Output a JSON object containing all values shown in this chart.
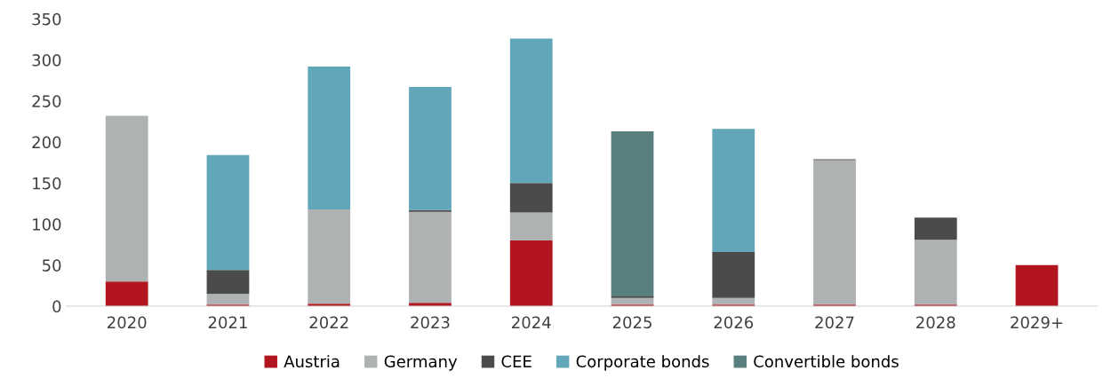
{
  "chart_data": {
    "type": "bar",
    "stacked": true,
    "categories": [
      "2020",
      "2021",
      "2022",
      "2023",
      "2024",
      "2025",
      "2026",
      "2027",
      "2028",
      "2029+"
    ],
    "series": [
      {
        "name": "Austria",
        "color": "#b3151f",
        "values": [
          30,
          2,
          3,
          4,
          80,
          2,
          2,
          2,
          2,
          50
        ]
      },
      {
        "name": "Germany",
        "color": "#afb2b3",
        "values": [
          202,
          13,
          115,
          111,
          34,
          8,
          8,
          176,
          79,
          0
        ]
      },
      {
        "name": "CEE",
        "color": "#4b4b4b",
        "values": [
          0,
          29,
          0,
          2,
          36,
          2,
          56,
          1,
          27,
          0
        ]
      },
      {
        "name": "Corporate bonds",
        "color": "#62a6ba",
        "values": [
          0,
          140,
          174,
          150,
          176,
          0,
          150,
          0,
          0,
          0
        ]
      },
      {
        "name": "Convertible bonds",
        "color": "#597f7e",
        "values": [
          0,
          0,
          0,
          0,
          0,
          201,
          0,
          0,
          0,
          0
        ]
      }
    ],
    "ylim": [
      0,
      350
    ],
    "yticks": [
      0,
      50,
      100,
      150,
      200,
      250,
      300,
      350
    ],
    "grid": false,
    "legend": "bottom"
  }
}
